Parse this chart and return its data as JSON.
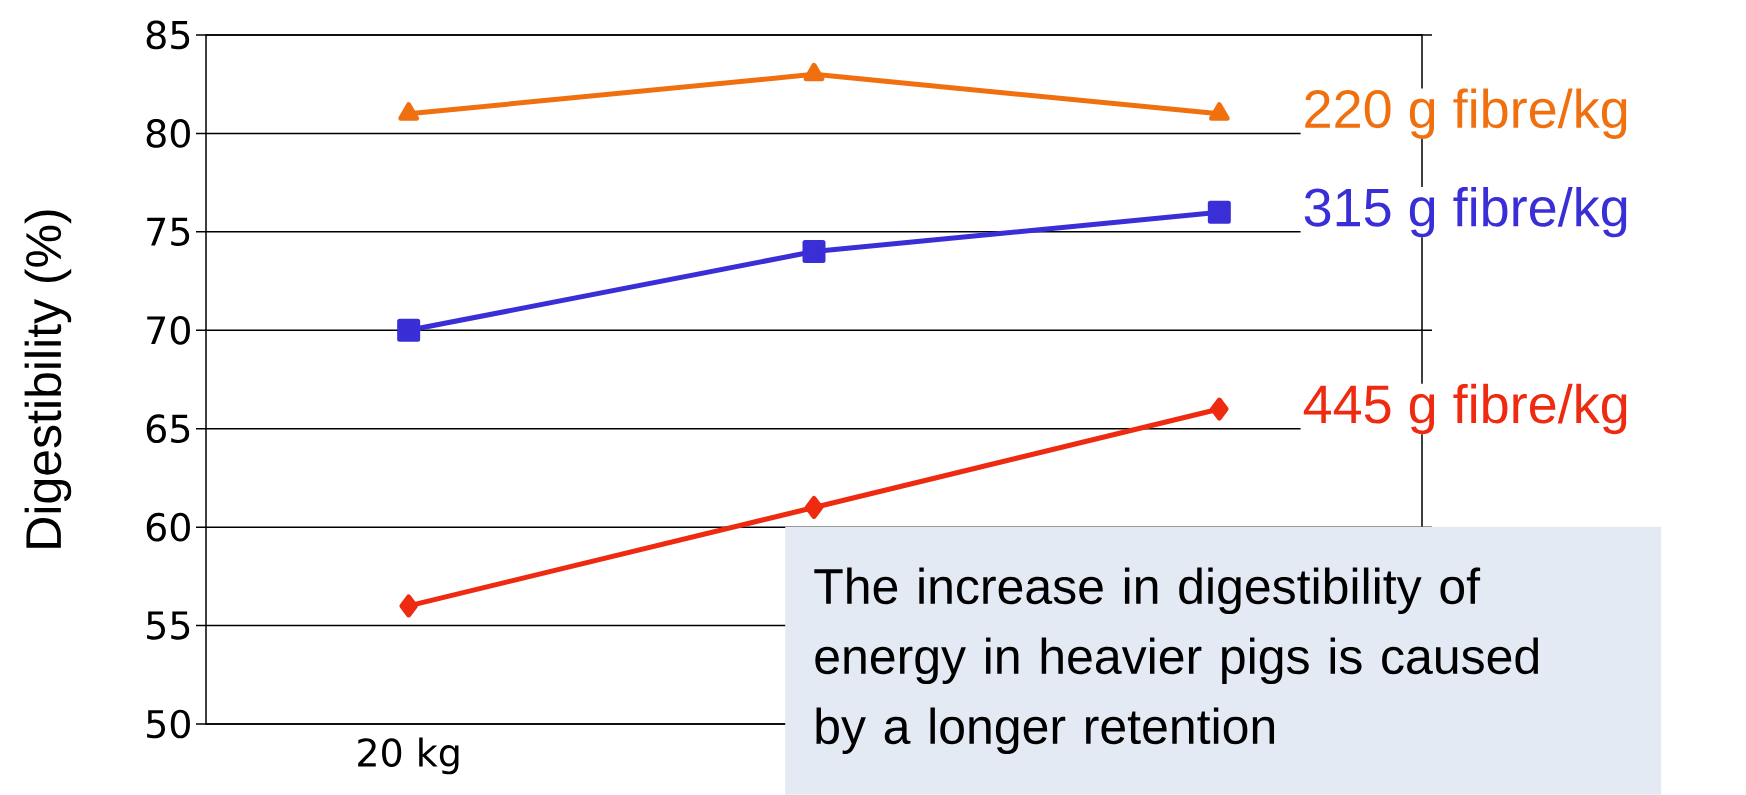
{
  "chart_data": {
    "type": "line",
    "ylabel": "Digestibility (%)",
    "categories": [
      "20 kg",
      null,
      null
    ],
    "series": [
      {
        "name": "220 g fibre/kg",
        "color": "#f07010",
        "marker": "triangle",
        "values": [
          81,
          83,
          81
        ]
      },
      {
        "name": "315 g fibre/kg",
        "color": "#3a2fd6",
        "marker": "square",
        "values": [
          70,
          74,
          76
        ]
      },
      {
        "name": "445 g fibre/kg",
        "color": "#ee2a10",
        "marker": "diamond",
        "values": [
          56,
          61,
          66
        ]
      }
    ],
    "ylim": [
      50,
      85
    ],
    "yticks": [
      50,
      55,
      60,
      65,
      70,
      75,
      80,
      85
    ],
    "grid": "y",
    "legend": false,
    "annotations": [
      "The increase in digestibility of energy in heavier pigs is caused by a longer retention"
    ]
  }
}
